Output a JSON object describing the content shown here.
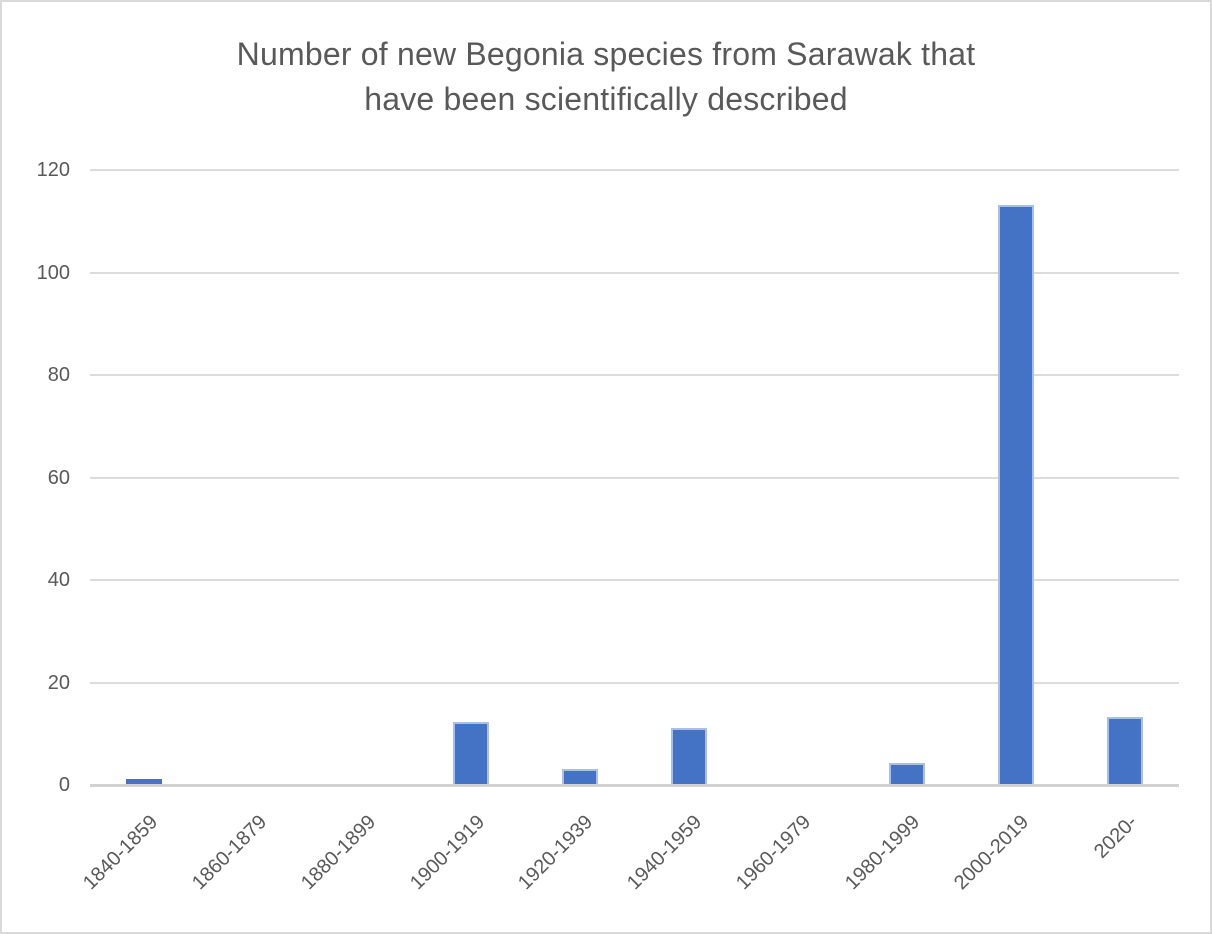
{
  "chart_data": {
    "type": "bar",
    "title": "Number of new Begonia species from Sarawak that have been scientifically described",
    "title_lines": [
      "Number of new Begonia species from Sarawak that",
      "have been scientifically described"
    ],
    "categories": [
      "1840-1859",
      "1860-1879",
      "1880-1899",
      "1900-1919",
      "1920-1939",
      "1940-1959",
      "1960-1979",
      "1980-1999",
      "2000-2019",
      "2020-"
    ],
    "values": [
      1,
      0,
      0,
      12,
      3,
      11,
      0,
      4,
      113,
      13
    ],
    "xlabel": "",
    "ylabel": "",
    "ylim": [
      0,
      120
    ],
    "yticks": [
      0,
      20,
      40,
      60,
      80,
      100,
      120
    ],
    "grid": true,
    "legend": false,
    "colors": {
      "bar_fill": "#4472c4",
      "bar_edge": "#a9bfe6",
      "gridline": "#dcdcdc",
      "axis_line": "#d2d2d2",
      "text": "#595959",
      "frame_border": "#d9d9d9",
      "background": "#ffffff"
    }
  }
}
